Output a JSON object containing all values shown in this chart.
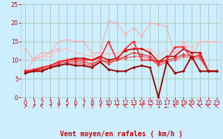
{
  "title": "",
  "xlabel": "Vent moyen/en rafales ( km/h )",
  "background_color": "#cceeff",
  "grid_color": "#aaccbb",
  "xlim": [
    -0.5,
    23.5
  ],
  "ylim": [
    0,
    25
  ],
  "yticks": [
    0,
    5,
    10,
    15,
    20,
    25
  ],
  "xticks": [
    0,
    1,
    2,
    3,
    4,
    5,
    6,
    7,
    8,
    9,
    10,
    11,
    12,
    13,
    14,
    15,
    16,
    17,
    18,
    19,
    20,
    21,
    22,
    23
  ],
  "series": [
    {
      "x": [
        0,
        1,
        4
      ],
      "y": [
        13,
        10,
        13
      ],
      "color": "#ffaaaa",
      "lw": 0.8,
      "marker": "D",
      "ms": 2.0
    },
    {
      "x": [
        0,
        1,
        2,
        3,
        4,
        5,
        6,
        7,
        8,
        9,
        10,
        11,
        12,
        13,
        14,
        15,
        16,
        17,
        18,
        19,
        20,
        21,
        22,
        23
      ],
      "y": [
        6.5,
        10.5,
        12,
        12,
        15,
        15.5,
        15,
        15,
        12,
        12,
        20.5,
        20,
        17,
        18.5,
        16.5,
        20,
        19.5,
        19,
        11,
        15,
        11,
        15,
        15,
        15
      ],
      "color": "#ffaaaa",
      "lw": 0.8,
      "marker": "D",
      "ms": 2.0
    },
    {
      "x": [
        0,
        1,
        2,
        3,
        4,
        5,
        6,
        7,
        8,
        9,
        10,
        11,
        12,
        13,
        14,
        15,
        16,
        17,
        18,
        19,
        20,
        21,
        22,
        23
      ],
      "y": [
        6.5,
        10.5,
        11,
        11,
        12.5,
        13,
        12,
        11.5,
        11,
        12,
        11.5,
        12,
        12.5,
        13.5,
        13,
        13,
        11,
        12.5,
        12,
        14,
        13.5,
        15,
        15,
        15
      ],
      "color": "#ffbbbb",
      "lw": 0.8,
      "marker": "D",
      "ms": 2.0
    },
    {
      "x": [
        0,
        1,
        2,
        3,
        4,
        5,
        6,
        7,
        8,
        9,
        10,
        11,
        12,
        13,
        14,
        15,
        16,
        17,
        18,
        19,
        20,
        21,
        22,
        23
      ],
      "y": [
        7,
        7,
        8,
        8.5,
        9.5,
        10,
        10.5,
        10.5,
        10,
        11,
        10,
        10.5,
        12.5,
        13,
        13,
        12,
        9.5,
        11,
        11,
        13,
        12,
        12,
        7,
        7
      ],
      "color": "#cc0000",
      "lw": 1.2,
      "marker": "D",
      "ms": 2.0
    },
    {
      "x": [
        0,
        1,
        2,
        3,
        4,
        5,
        6,
        7,
        8,
        9,
        10,
        11,
        12,
        13,
        14,
        15,
        16,
        17,
        18,
        19,
        20,
        21,
        22,
        23
      ],
      "y": [
        7,
        7,
        7.5,
        8,
        9,
        9.5,
        9.5,
        9.5,
        9,
        10,
        9.5,
        10,
        11,
        12,
        11.5,
        11,
        9,
        10,
        10.5,
        11.5,
        11,
        11,
        7,
        7
      ],
      "color": "#dd3333",
      "lw": 0.9,
      "marker": "D",
      "ms": 2.0
    },
    {
      "x": [
        0,
        1,
        2,
        3,
        4,
        5,
        6,
        7,
        8,
        9,
        10,
        11,
        12,
        13,
        14,
        15,
        16,
        17,
        18,
        19,
        20,
        21,
        22,
        23
      ],
      "y": [
        6.5,
        7,
        7.5,
        8,
        8.5,
        9,
        9,
        9,
        8.5,
        10,
        9,
        10,
        10.5,
        11,
        11,
        10.5,
        8.5,
        9.5,
        10,
        11,
        10.5,
        10.5,
        7,
        7
      ],
      "color": "#ee5555",
      "lw": 0.9,
      "marker": "D",
      "ms": 2.0
    },
    {
      "x": [
        0,
        1,
        2,
        3,
        4,
        5,
        6,
        7,
        8,
        9,
        10,
        11,
        12,
        13,
        14,
        15,
        16,
        17,
        18,
        19,
        20,
        21,
        22,
        23
      ],
      "y": [
        7,
        7.5,
        8,
        8.5,
        9.5,
        10,
        10,
        10,
        10,
        10.5,
        15,
        10,
        13,
        15,
        10,
        10,
        9.5,
        10,
        13.5,
        13.5,
        10.5,
        11.5,
        7,
        7
      ],
      "color": "#ff2222",
      "lw": 1.2,
      "marker": "D",
      "ms": 2.0
    },
    {
      "x": [
        0,
        1,
        2,
        3,
        4,
        5,
        6,
        7,
        8,
        9,
        10,
        11,
        12,
        13,
        14,
        15,
        16,
        17,
        18,
        19,
        20,
        21,
        22,
        23
      ],
      "y": [
        6.5,
        7,
        7,
        8,
        8.5,
        9,
        8.5,
        8.5,
        8,
        9.5,
        7.5,
        7,
        7,
        8,
        8.5,
        8,
        0,
        9.5,
        6.5,
        7,
        11,
        7,
        7,
        7
      ],
      "color": "#990000",
      "lw": 1.4,
      "marker": "D",
      "ms": 2.0
    }
  ],
  "arrows": [
    "↗",
    "↗",
    "↖",
    "↑",
    "↑",
    "↑",
    "↑",
    "↑",
    "↑",
    "↑",
    "↑",
    "↑",
    "↖",
    "↑",
    "↑",
    "↑",
    "↓",
    "←",
    "↖",
    "↖",
    "↖",
    "↖",
    "↖",
    "↖"
  ],
  "xlabel_color": "#cc0000",
  "xlabel_fontsize": 7,
  "tick_fontsize": 6,
  "tick_color": "#cc0000"
}
